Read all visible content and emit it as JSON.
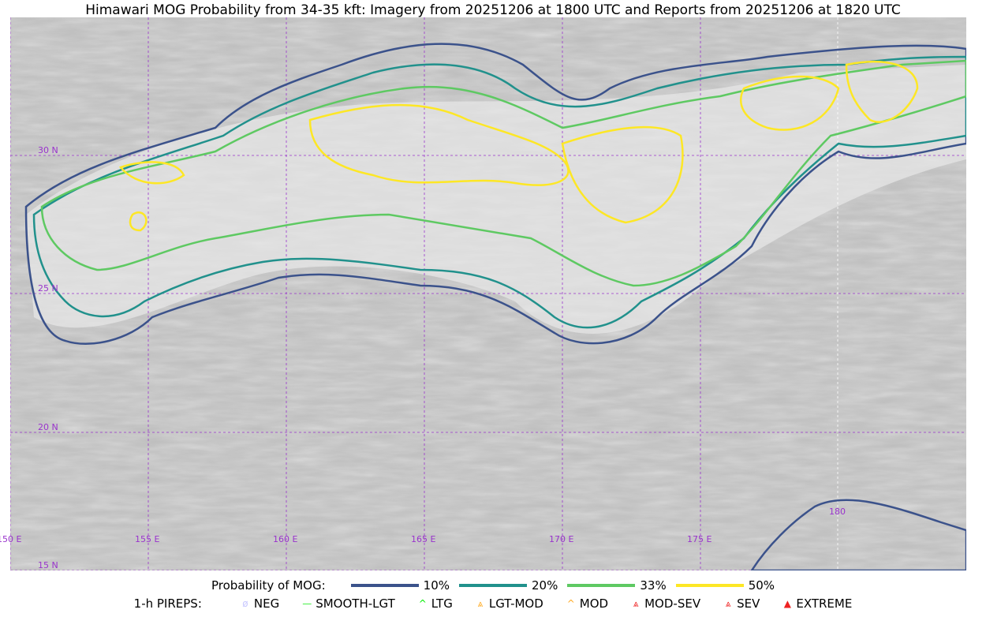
{
  "title": "Himawari MOG Probability from 34-35 kft: Imagery from 20251206 at 1800 UTC and Reports from 20251206 at 1820 UTC",
  "map": {
    "lat_labels": [
      "30 N",
      "25 N",
      "20 N",
      "15 N"
    ],
    "lon_labels": [
      "150 E",
      "155 E",
      "160 E",
      "165 E",
      "170 E",
      "175 E",
      "180"
    ],
    "grid_color": "#9933cc",
    "contour_colors": {
      "p10": "#3b528b",
      "p20": "#21918c",
      "p33": "#5ec962",
      "p50": "#fde725"
    }
  },
  "legend": {
    "prob_label": "Probability of MOG:",
    "prob_items": [
      {
        "label": "10%",
        "color": "#3b528b"
      },
      {
        "label": "20%",
        "color": "#21918c"
      },
      {
        "label": "33%",
        "color": "#5ec962"
      },
      {
        "label": "50%",
        "color": "#fde725"
      }
    ],
    "pirep_label": "1-h PIREPS:",
    "pirep_items": [
      {
        "label": "NEG",
        "color": "#c8c8ff",
        "icon": "ø"
      },
      {
        "label": "SMOOTH-LGT",
        "color": "#33ee33",
        "icon": "—"
      },
      {
        "label": "LTG",
        "color": "#00ee00",
        "icon": "^"
      },
      {
        "label": "LGT-MOD",
        "color": "#ffaa22",
        "icon": "⩓"
      },
      {
        "label": "MOD",
        "color": "#ffaa22",
        "icon": "^"
      },
      {
        "label": "MOD-SEV",
        "color": "#ee2222",
        "icon": "⩓"
      },
      {
        "label": "SEV",
        "color": "#ee2222",
        "icon": "⩓"
      },
      {
        "label": "EXTREME",
        "color": "#ee2222",
        "icon": "▲"
      }
    ]
  }
}
